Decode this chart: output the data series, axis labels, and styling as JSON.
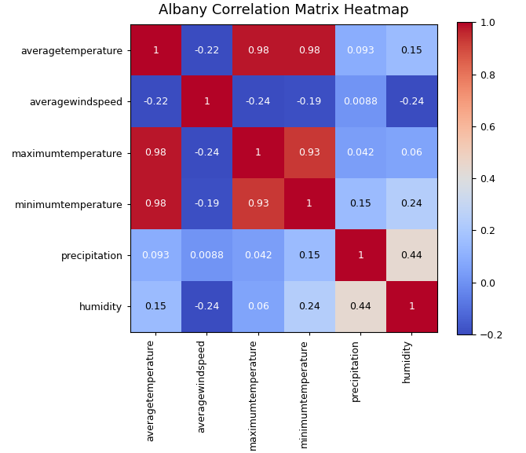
{
  "title": "Albany Correlation Matrix Heatmap",
  "labels": [
    "averagetemperature",
    "averagewindspeed",
    "maximumtemperature",
    "minimumtemperature",
    "precipitation",
    "humidity"
  ],
  "matrix": [
    [
      1,
      -0.22,
      0.98,
      0.98,
      0.093,
      0.15
    ],
    [
      -0.22,
      1,
      -0.24,
      -0.19,
      0.0088,
      -0.24
    ],
    [
      0.98,
      -0.24,
      1,
      0.93,
      0.042,
      0.06
    ],
    [
      0.98,
      -0.19,
      0.93,
      1,
      0.15,
      0.24
    ],
    [
      0.093,
      0.0088,
      0.042,
      0.15,
      1,
      0.44
    ],
    [
      0.15,
      -0.24,
      0.06,
      0.24,
      0.44,
      1
    ]
  ],
  "annotations": [
    [
      "1",
      "-0.22",
      "0.98",
      "0.98",
      "0.093",
      "0.15"
    ],
    [
      "-0.22",
      "1",
      "-0.24",
      "-0.19",
      "0.0088",
      "-0.24"
    ],
    [
      "0.98",
      "-0.24",
      "1",
      "0.93",
      "0.042",
      "0.06"
    ],
    [
      "0.98",
      "-0.19",
      "0.93",
      "1",
      "0.15",
      "0.24"
    ],
    [
      "0.093",
      "0.0088",
      "0.042",
      "0.15",
      "1",
      "0.44"
    ],
    [
      "0.15",
      "-0.24",
      "0.06",
      "0.24",
      "0.44",
      "1"
    ]
  ],
  "vmin": -0.2,
  "vmax": 1.0,
  "colormap": "coolwarm",
  "figsize": [
    6.7,
    5.77
  ],
  "dpi": 100,
  "title_fontsize": 13,
  "label_fontsize": 9,
  "annot_fontsize": 9,
  "colorbar_ticks": [
    -0.2,
    0.0,
    0.2,
    0.4,
    0.6,
    0.8,
    1.0
  ]
}
